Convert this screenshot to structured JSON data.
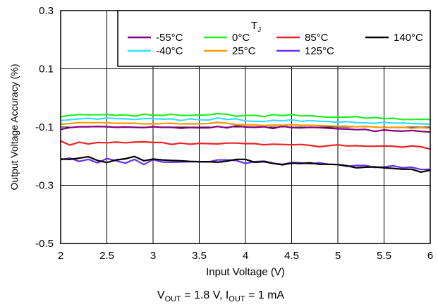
{
  "chart_data": {
    "type": "line",
    "xlabel": "Input Voltage (V)",
    "ylabel": "Output Voltage Accuracy (%)",
    "xlim": [
      2,
      6
    ],
    "ylim": [
      -0.5,
      0.3
    ],
    "x_ticks": [
      {
        "v": 2,
        "label": "2"
      },
      {
        "v": 2.5,
        "label": "2.5"
      },
      {
        "v": 3,
        "label": "3"
      },
      {
        "v": 3.5,
        "label": "3.5"
      },
      {
        "v": 4,
        "label": "4"
      },
      {
        "v": 4.5,
        "label": "4.5"
      },
      {
        "v": 5,
        "label": "5"
      },
      {
        "v": 5.5,
        "label": "5.5"
      },
      {
        "v": 6,
        "label": "6"
      }
    ],
    "y_ticks": [
      {
        "v": 0.3,
        "label": "0.3"
      },
      {
        "v": 0.1,
        "label": "0.1"
      },
      {
        "v": -0.1,
        "label": "-0.1"
      },
      {
        "v": -0.3,
        "label": "-0.3"
      },
      {
        "v": -0.5,
        "label": "-0.5"
      }
    ],
    "grid": true,
    "legend": {
      "title_main": "T",
      "title_sub": "J",
      "position": "top-right"
    },
    "caption": {
      "v": "V",
      "v_sub": "OUT",
      "v_val": " = 1.8 V, ",
      "i": "I",
      "i_sub": "OUT",
      "i_val": " = 1 mA"
    },
    "x": [
      2.0,
      2.1,
      2.2,
      2.3,
      2.4,
      2.5,
      2.6,
      2.7,
      2.8,
      2.9,
      3.0,
      3.1,
      3.2,
      3.3,
      3.4,
      3.5,
      3.6,
      3.7,
      3.8,
      3.9,
      4.0,
      4.1,
      4.2,
      4.3,
      4.4,
      4.5,
      4.6,
      4.7,
      4.8,
      4.9,
      5.0,
      5.1,
      5.2,
      5.3,
      5.4,
      5.5,
      5.6,
      5.7,
      5.8,
      5.9,
      6.0
    ],
    "series": [
      {
        "name": "-55°C",
        "color": "#800080",
        "values": [
          -0.108,
          -0.102,
          -0.099,
          -0.099,
          -0.098,
          -0.099,
          -0.101,
          -0.1,
          -0.101,
          -0.102,
          -0.099,
          -0.101,
          -0.101,
          -0.104,
          -0.102,
          -0.103,
          -0.103,
          -0.098,
          -0.103,
          -0.096,
          -0.1,
          -0.101,
          -0.099,
          -0.105,
          -0.097,
          -0.102,
          -0.103,
          -0.101,
          -0.102,
          -0.104,
          -0.106,
          -0.107,
          -0.109,
          -0.108,
          -0.115,
          -0.11,
          -0.113,
          -0.114,
          -0.112,
          -0.115,
          -0.117
        ]
      },
      {
        "name": "-40°C",
        "color": "#33ddff",
        "values": [
          -0.078,
          -0.075,
          -0.072,
          -0.07,
          -0.073,
          -0.069,
          -0.071,
          -0.072,
          -0.074,
          -0.071,
          -0.071,
          -0.073,
          -0.072,
          -0.078,
          -0.072,
          -0.075,
          -0.076,
          -0.069,
          -0.074,
          -0.072,
          -0.079,
          -0.08,
          -0.081,
          -0.077,
          -0.079,
          -0.075,
          -0.08,
          -0.078,
          -0.08,
          -0.081,
          -0.084,
          -0.081,
          -0.085,
          -0.086,
          -0.087,
          -0.084,
          -0.087,
          -0.086,
          -0.088,
          -0.089,
          -0.09
        ]
      },
      {
        "name": "0°C",
        "color": "#22ee22",
        "values": [
          -0.065,
          -0.06,
          -0.057,
          -0.058,
          -0.058,
          -0.057,
          -0.06,
          -0.058,
          -0.063,
          -0.056,
          -0.059,
          -0.06,
          -0.056,
          -0.06,
          -0.06,
          -0.059,
          -0.058,
          -0.054,
          -0.056,
          -0.063,
          -0.06,
          -0.06,
          -0.064,
          -0.057,
          -0.061,
          -0.057,
          -0.062,
          -0.061,
          -0.064,
          -0.066,
          -0.066,
          -0.066,
          -0.064,
          -0.07,
          -0.067,
          -0.071,
          -0.07,
          -0.074,
          -0.074,
          -0.073,
          -0.074
        ]
      },
      {
        "name": "25°C",
        "color": "#ff9900",
        "values": [
          -0.09,
          -0.088,
          -0.085,
          -0.085,
          -0.085,
          -0.085,
          -0.087,
          -0.087,
          -0.087,
          -0.089,
          -0.089,
          -0.088,
          -0.087,
          -0.089,
          -0.089,
          -0.089,
          -0.088,
          -0.084,
          -0.087,
          -0.092,
          -0.092,
          -0.093,
          -0.095,
          -0.093,
          -0.094,
          -0.092,
          -0.094,
          -0.094,
          -0.095,
          -0.096,
          -0.097,
          -0.097,
          -0.099,
          -0.098,
          -0.1,
          -0.102,
          -0.101,
          -0.101,
          -0.104,
          -0.102,
          -0.104
        ]
      },
      {
        "name": "85°C",
        "color": "#ee2222",
        "values": [
          -0.148,
          -0.162,
          -0.152,
          -0.158,
          -0.153,
          -0.154,
          -0.152,
          -0.154,
          -0.152,
          -0.151,
          -0.153,
          -0.153,
          -0.16,
          -0.155,
          -0.159,
          -0.156,
          -0.157,
          -0.158,
          -0.155,
          -0.155,
          -0.157,
          -0.157,
          -0.161,
          -0.159,
          -0.16,
          -0.161,
          -0.16,
          -0.163,
          -0.168,
          -0.164,
          -0.161,
          -0.165,
          -0.164,
          -0.166,
          -0.166,
          -0.165,
          -0.166,
          -0.169,
          -0.165,
          -0.168,
          -0.176
        ]
      },
      {
        "name": "125°C",
        "color": "#6633ee",
        "values": [
          -0.212,
          -0.207,
          -0.218,
          -0.211,
          -0.223,
          -0.208,
          -0.216,
          -0.224,
          -0.211,
          -0.229,
          -0.212,
          -0.22,
          -0.221,
          -0.22,
          -0.219,
          -0.219,
          -0.22,
          -0.213,
          -0.213,
          -0.215,
          -0.225,
          -0.219,
          -0.217,
          -0.224,
          -0.228,
          -0.222,
          -0.223,
          -0.226,
          -0.223,
          -0.228,
          -0.229,
          -0.235,
          -0.232,
          -0.232,
          -0.239,
          -0.237,
          -0.233,
          -0.24,
          -0.238,
          -0.246,
          -0.245
        ]
      },
      {
        "name": "140°C",
        "color": "#000000",
        "values": [
          -0.21,
          -0.211,
          -0.207,
          -0.202,
          -0.215,
          -0.222,
          -0.213,
          -0.209,
          -0.201,
          -0.216,
          -0.21,
          -0.213,
          -0.215,
          -0.216,
          -0.218,
          -0.219,
          -0.219,
          -0.221,
          -0.217,
          -0.211,
          -0.211,
          -0.221,
          -0.219,
          -0.225,
          -0.23,
          -0.224,
          -0.225,
          -0.223,
          -0.228,
          -0.228,
          -0.229,
          -0.233,
          -0.24,
          -0.238,
          -0.237,
          -0.24,
          -0.242,
          -0.245,
          -0.245,
          -0.255,
          -0.248
        ]
      }
    ]
  }
}
